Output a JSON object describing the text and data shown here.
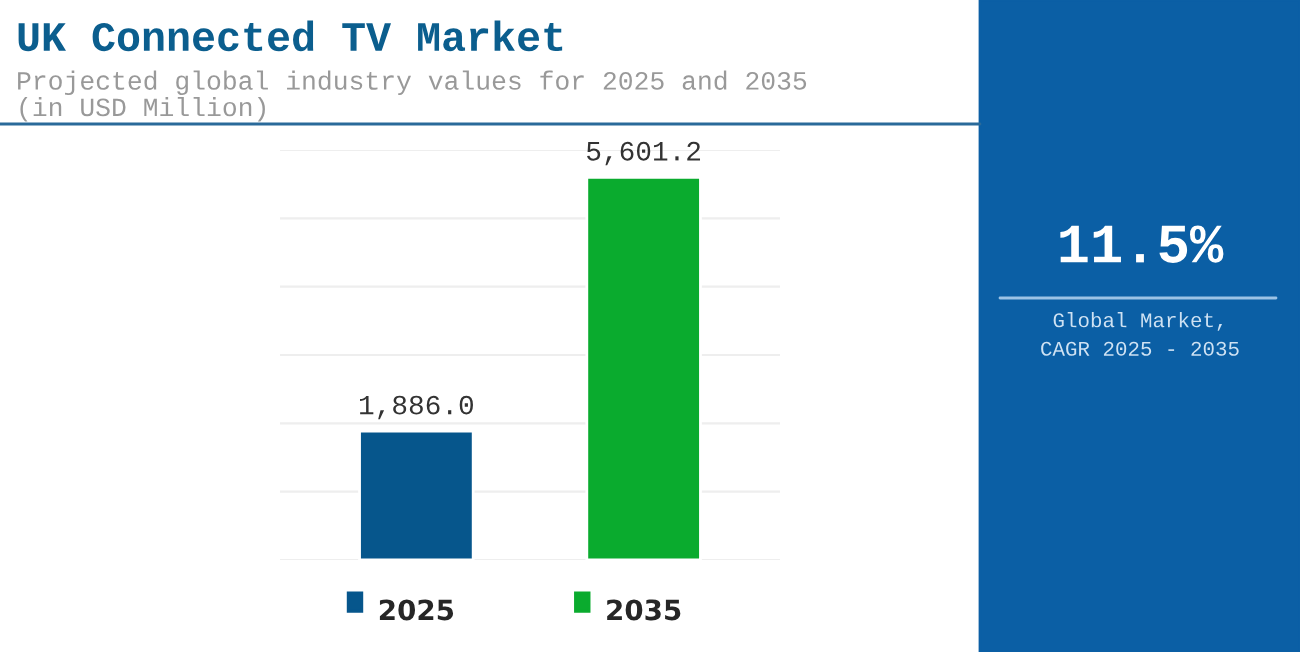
{
  "chart_data": {
    "type": "bar",
    "title": "UK Connected TV Market",
    "subtitle": "Projected global industry values for 2025 and 2035\n(in USD Million)",
    "categories": [
      "2025",
      "2035"
    ],
    "values": [
      1886.0,
      5601.2
    ],
    "value_labels": [
      "1,886.0",
      "5,601.2"
    ],
    "colors": [
      "#06568c",
      "#0aab2e"
    ],
    "grid": "y",
    "annotations": [
      "11.5%",
      "Global Market,\nCAGR 2025 - 2035"
    ]
  }
}
